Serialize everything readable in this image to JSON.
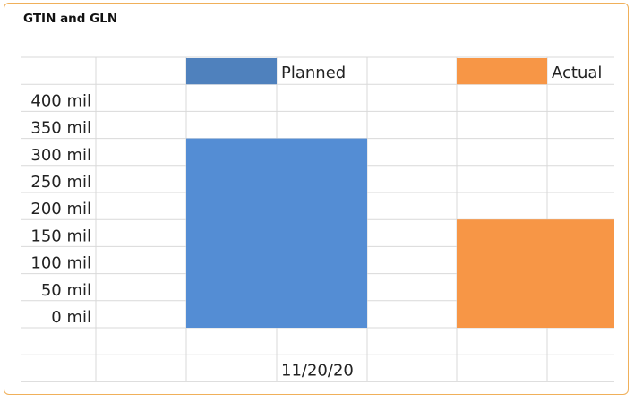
{
  "card": {
    "title": "GTIN and GLN"
  },
  "chart_data": {
    "type": "bar",
    "title": "",
    "xlabel": "",
    "ylabel": "",
    "categories": [
      "11/20/20"
    ],
    "series": [
      {
        "name": "Planned",
        "values": [
          350000000
        ],
        "color": "#548dd4"
      },
      {
        "name": "Actual",
        "values": [
          200000000
        ],
        "color": "#f79646"
      }
    ],
    "legend_colors": [
      "#4f81bd",
      "#f79646"
    ],
    "ylim": [
      0,
      400000000
    ],
    "y_ticks": [
      {
        "value": 400000000,
        "label": "400 mil"
      },
      {
        "value": 350000000,
        "label": "350 mil"
      },
      {
        "value": 300000000,
        "label": "300 mil"
      },
      {
        "value": 250000000,
        "label": "250 mil"
      },
      {
        "value": 200000000,
        "label": "200 mil"
      },
      {
        "value": 150000000,
        "label": "150 mil"
      },
      {
        "value": 100000000,
        "label": "100 mil"
      },
      {
        "value": 50000000,
        "label": "50 mil"
      },
      {
        "value": 0,
        "label": "0 mil"
      }
    ],
    "grid": true,
    "legend_position": "top",
    "gridline_color": "#d9d9d9",
    "card_border_color": "#f0b05a"
  }
}
